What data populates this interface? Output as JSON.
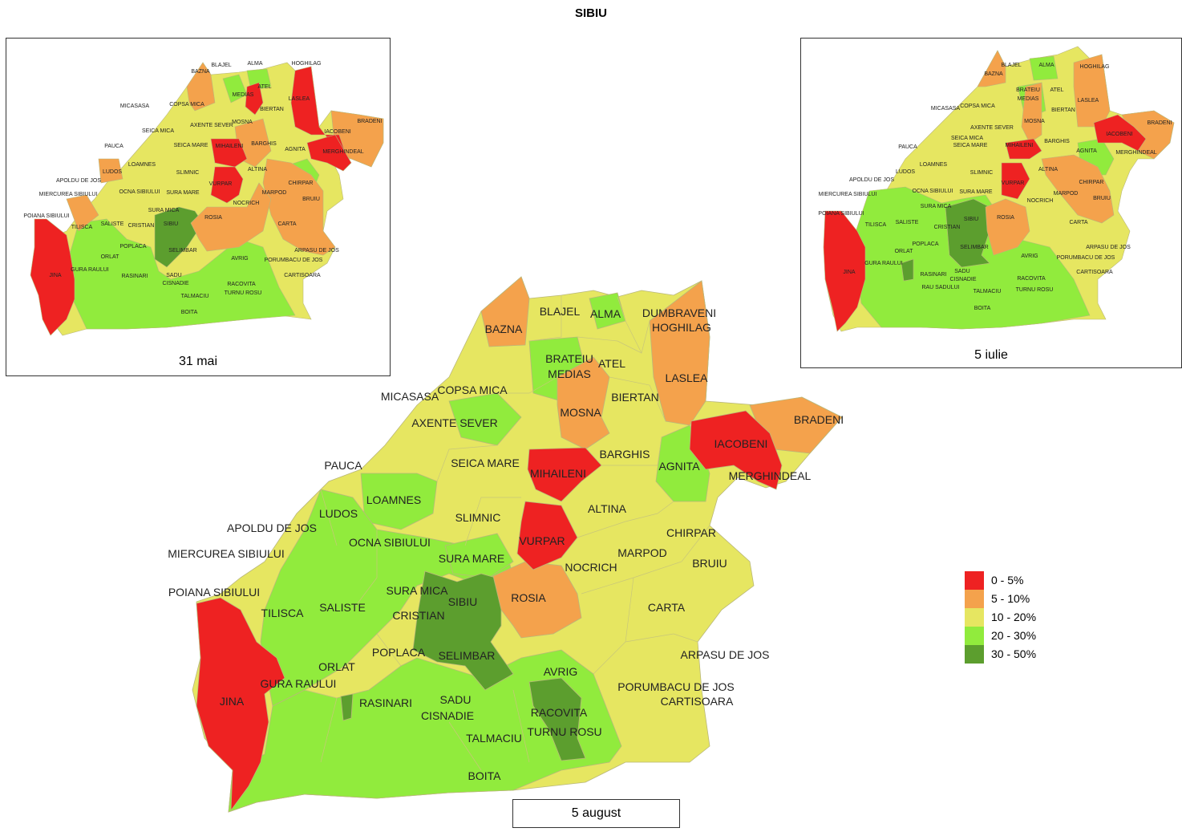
{
  "title": "SIBIU",
  "colors": {
    "c0_5": "#ee2222",
    "c5_10": "#f4a24c",
    "c10_20": "#e6e661",
    "c20_30": "#91eb3d",
    "c30_50": "#5c9e2e"
  },
  "maps": {
    "mai": {
      "caption": "31 mai"
    },
    "iulie": {
      "caption": "5 iulie"
    },
    "august": {
      "caption": "5 august"
    }
  },
  "legend": [
    {
      "label": "0 - 5%",
      "color": "#ee2222"
    },
    {
      "label": "5 - 10%",
      "color": "#f4a24c"
    },
    {
      "label": "10 - 20%",
      "color": "#e6e661"
    },
    {
      "label": "20 - 30%",
      "color": "#91eb3d"
    },
    {
      "label": "30 - 50%",
      "color": "#5c9e2e"
    }
  ],
  "labels": {
    "bazna": "BAZNA",
    "blajel": "BLAJEL",
    "alma": "ALMA",
    "dumbraveni": "DUMBRAVENI",
    "hoghilag": "HOGHILAG",
    "brateiu": "BRATEIU",
    "medias": "MEDIAS",
    "atel": "ATEL",
    "laslea": "LASLEA",
    "micasasa": "MICASASA",
    "copsa_mica": "COPSA MICA",
    "biertan": "BIERTAN",
    "axente_sever": "AXENTE SEVER",
    "mosna": "MOSNA",
    "bradeni": "BRADENI",
    "iacobeni": "IACOBENI",
    "seica_mare": "SEICA MARE",
    "seica_mica": "SEICA MICA",
    "barghis": "BARGHIS",
    "pauca": "PAUCA",
    "mihaileni": "MIHAILENI",
    "agnita": "AGNITA",
    "merghindeal": "MERGHINDEAL",
    "loamnes": "LOAMNES",
    "ludos": "LUDOS",
    "slimnic": "SLIMNIC",
    "altina": "ALTINA",
    "apoldu_de_jos": "APOLDU DE JOS",
    "chirpar": "CHIRPAR",
    "ocna_sibiului": "OCNA SIBIULUI",
    "vurpar": "VURPAR",
    "miercurea_sibiului": "MIERCUREA SIBIULUI",
    "sura_mare": "SURA MARE",
    "marpod": "MARPOD",
    "bruiu": "BRUIU",
    "nocrich": "NOCRICH",
    "poiana_sibiului": "POIANA SIBIULUI",
    "sura_mica": "SURA MICA",
    "sibiu": "SIBIU",
    "rosia": "ROSIA",
    "tilisca": "TILISCA",
    "saliste": "SALISTE",
    "cristian": "CRISTIAN",
    "carta": "CARTA",
    "poplaca": "POPLACA",
    "selimbar": "SELIMBAR",
    "arpasu_de_jos": "ARPASU DE JOS",
    "orlat": "ORLAT",
    "avrig": "AVRIG",
    "gura_raului": "GURA RAULUI",
    "porumbacu_de_jos": "PORUMBACU DE JOS",
    "jina": "JINA",
    "rasinari": "RASINARI",
    "sadu": "SADU",
    "cisnadie": "CISNADIE",
    "racovita": "RACOVITA",
    "cartisoara": "CARTISOARA",
    "turnu_rosu": "TURNU ROSU",
    "talmaciu": "TALMACIU",
    "boita": "BOITA",
    "rau_sadului": "RAU SADULUI"
  }
}
